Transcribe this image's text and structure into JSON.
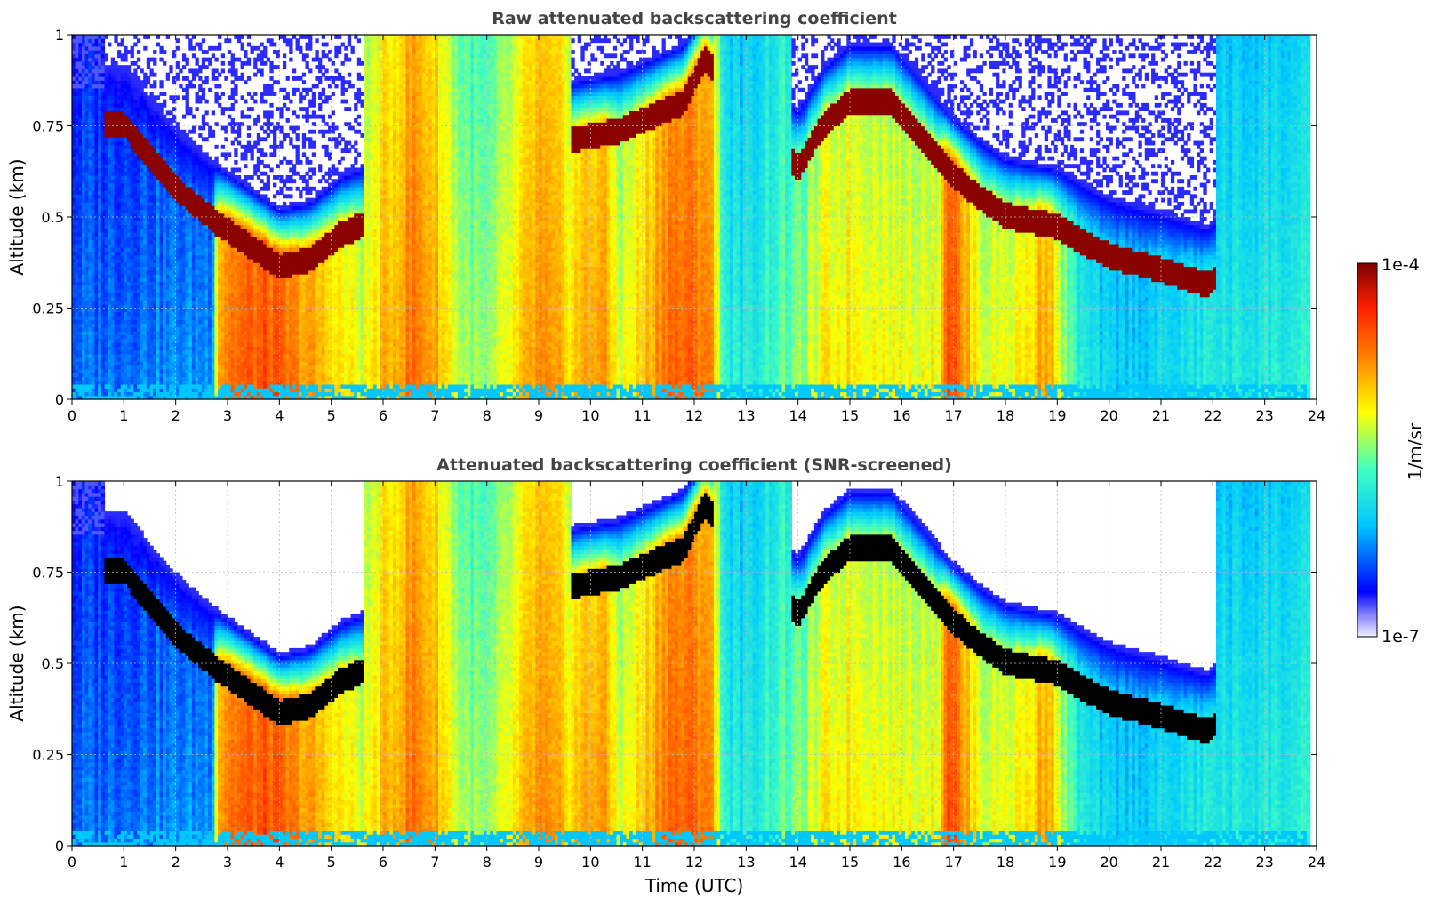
{
  "chart_data": [
    {
      "type": "heatmap",
      "title": "Raw attenuated backscattering coefficient",
      "xlabel": "",
      "ylabel": "Altitude (km)",
      "xlim": [
        0,
        24
      ],
      "ylim": [
        0,
        1
      ],
      "x_ticks": [
        "0",
        "1",
        "2",
        "3",
        "4",
        "5",
        "6",
        "7",
        "8",
        "9",
        "10",
        "11",
        "12",
        "13",
        "14",
        "15",
        "16",
        "17",
        "18",
        "19",
        "20",
        "21",
        "22",
        "23",
        "24"
      ],
      "y_ticks": [
        "0",
        "0.25",
        "0.5",
        "0.75",
        "1"
      ],
      "grid": true,
      "screened": false,
      "cloud_layer": {
        "hours": [
          0.6,
          1.0,
          1.8,
          2.2,
          2.8,
          3.5,
          4.0,
          4.6,
          5.2,
          9.7,
          10.5,
          11.8,
          12.2,
          14.0,
          14.5,
          15.0,
          15.8,
          16.3,
          17.0,
          17.5,
          18.0,
          19.0,
          19.6,
          20.0,
          21.0,
          21.9,
          22.05
        ],
        "base_km": [
          0.72,
          0.72,
          0.58,
          0.52,
          0.45,
          0.38,
          0.33,
          0.35,
          0.42,
          0.68,
          0.7,
          0.78,
          0.9,
          0.6,
          0.72,
          0.78,
          0.78,
          0.7,
          0.58,
          0.52,
          0.47,
          0.44,
          0.39,
          0.36,
          0.32,
          0.28,
          0.3
        ]
      }
    },
    {
      "type": "heatmap",
      "title": "Attenuated backscattering coefficient (SNR-screened)",
      "xlabel": "Time (UTC)",
      "ylabel": "Altitude (km)",
      "xlim": [
        0,
        24
      ],
      "ylim": [
        0,
        1
      ],
      "x_ticks": [
        "0",
        "1",
        "2",
        "3",
        "4",
        "5",
        "6",
        "7",
        "8",
        "9",
        "10",
        "11",
        "12",
        "13",
        "14",
        "15",
        "16",
        "17",
        "18",
        "19",
        "20",
        "21",
        "22",
        "23",
        "24"
      ],
      "y_ticks": [
        "0",
        "0.25",
        "0.5",
        "0.75",
        "1"
      ],
      "grid": true,
      "screened": true
    }
  ],
  "colorbar": {
    "label": "1/m/sr",
    "max_label": "1e-4",
    "min_label": "1e-7",
    "scale": "log",
    "colormap": [
      "#eeeeff",
      "#0000ff",
      "#00c8ff",
      "#80ff80",
      "#ffff00",
      "#ff8000",
      "#ff2000",
      "#800000"
    ]
  }
}
